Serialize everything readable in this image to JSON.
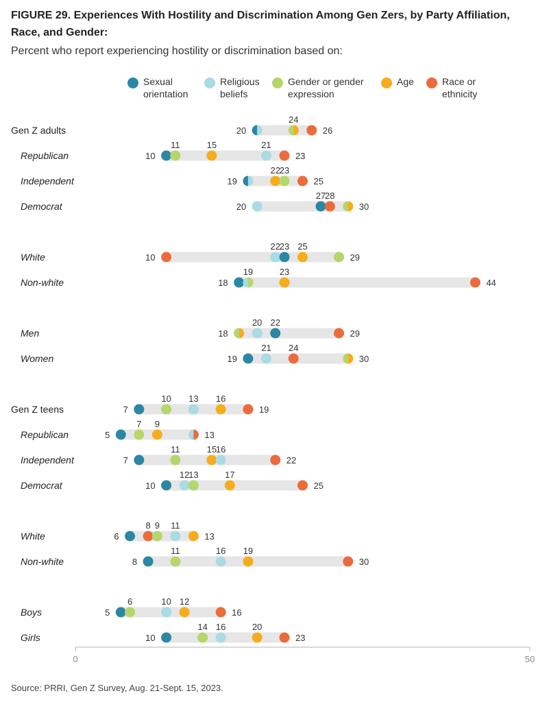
{
  "title": "FIGURE 29. Experiences With Hostility and Discrimination Among Gen Zers, by Party Affiliation, Race, and Gender:",
  "subtitle": "Percent who report experiencing hostility or discrimination based on:",
  "source": "Source: PRRI, Gen Z Survey, Aug. 21-Sept. 15, 2023.",
  "chart_data": {
    "type": "dot",
    "xlim": [
      0,
      50
    ],
    "xticks": [
      "0",
      "50"
    ],
    "grid": false,
    "legend_position": "top",
    "series": [
      {
        "key": "sexual",
        "name": "Sexual orientation",
        "color": "#2b87a3"
      },
      {
        "key": "religious",
        "name": "Religious beliefs",
        "color": "#a9dbe3"
      },
      {
        "key": "gender",
        "name": "Gender or gender expression",
        "color": "#b4d66b"
      },
      {
        "key": "age",
        "name": "Age",
        "color": "#f6ac1c"
      },
      {
        "key": "race",
        "name": "Race or ethnicity",
        "color": "#ec6b3a"
      }
    ],
    "rows": [
      {
        "label": "Gen Z adults",
        "italic": false,
        "values": {
          "sexual": 20,
          "religious": 20,
          "gender": 24,
          "age": 24,
          "race": 26
        }
      },
      {
        "label": "Republican",
        "italic": true,
        "values": {
          "sexual": 10,
          "religious": 21,
          "gender": 11,
          "age": 15,
          "race": 23
        }
      },
      {
        "label": "Independent",
        "italic": true,
        "values": {
          "sexual": 19,
          "religious": 19,
          "gender": 23,
          "age": 22,
          "race": 25
        }
      },
      {
        "label": "Democrat",
        "italic": true,
        "values": {
          "sexual": 27,
          "religious": 20,
          "gender": 30,
          "age": 30,
          "race": 28
        }
      },
      {
        "label": "White",
        "italic": true,
        "values": {
          "sexual": 23,
          "religious": 22,
          "gender": 29,
          "age": 25,
          "race": 10
        }
      },
      {
        "label": "Non-white",
        "italic": true,
        "values": {
          "sexual": 18,
          "religious": 19,
          "gender": 19,
          "age": 23,
          "race": 44
        }
      },
      {
        "label": "Men",
        "italic": true,
        "values": {
          "sexual": 22,
          "religious": 20,
          "gender": 18,
          "age": 18,
          "race": 29
        }
      },
      {
        "label": "Women",
        "italic": true,
        "values": {
          "sexual": 19,
          "religious": 21,
          "gender": 30,
          "age": 30,
          "race": 24
        }
      },
      {
        "label": "Gen Z teens",
        "italic": false,
        "values": {
          "sexual": 7,
          "religious": 13,
          "gender": 10,
          "age": 16,
          "race": 19
        }
      },
      {
        "label": "Republican",
        "italic": true,
        "values": {
          "sexual": 5,
          "religious": 13,
          "gender": 7,
          "age": 9,
          "race": 13
        }
      },
      {
        "label": "Independent",
        "italic": true,
        "values": {
          "sexual": 7,
          "religious": 16,
          "gender": 11,
          "age": 15,
          "race": 22
        }
      },
      {
        "label": "Democrat",
        "italic": true,
        "values": {
          "sexual": 10,
          "religious": 12,
          "gender": 13,
          "age": 17,
          "race": 25
        }
      },
      {
        "label": "White",
        "italic": true,
        "values": {
          "sexual": 6,
          "religious": 11,
          "gender": 9,
          "age": 13,
          "race": 8
        }
      },
      {
        "label": "Non-white",
        "italic": true,
        "values": {
          "sexual": 8,
          "religious": 16,
          "gender": 11,
          "age": 19,
          "race": 30
        }
      },
      {
        "label": "Boys",
        "italic": true,
        "values": {
          "sexual": 5,
          "religious": 10,
          "gender": 6,
          "age": 12,
          "race": 16
        }
      },
      {
        "label": "Girls",
        "italic": true,
        "values": {
          "sexual": 10,
          "religious": 16,
          "gender": 14,
          "age": 20,
          "race": 23
        }
      }
    ]
  }
}
